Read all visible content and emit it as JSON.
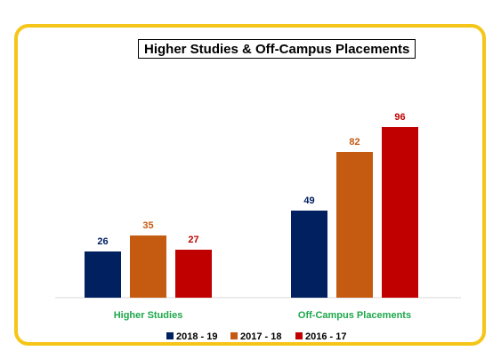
{
  "chart_data": {
    "type": "bar",
    "title": "Higher Studies & Off-Campus  Placements",
    "categories": [
      "Higher Studies",
      "Off-Campus Placements"
    ],
    "series": [
      {
        "name": "2018 - 19",
        "values": [
          26,
          49
        ],
        "color": "#002060",
        "label_color": "#002060"
      },
      {
        "name": "2017 - 18",
        "values": [
          35,
          82
        ],
        "color": "#c55a11",
        "label_color": "#c55a11"
      },
      {
        "name": "2016 - 17",
        "values": [
          27,
          96
        ],
        "color": "#c00000",
        "label_color": "#c00000"
      }
    ],
    "ylim": [
      0,
      100
    ],
    "grid": false,
    "legend_position": "bottom",
    "category_label_color": "#1ea84a",
    "frame_color": "#f5c518"
  }
}
